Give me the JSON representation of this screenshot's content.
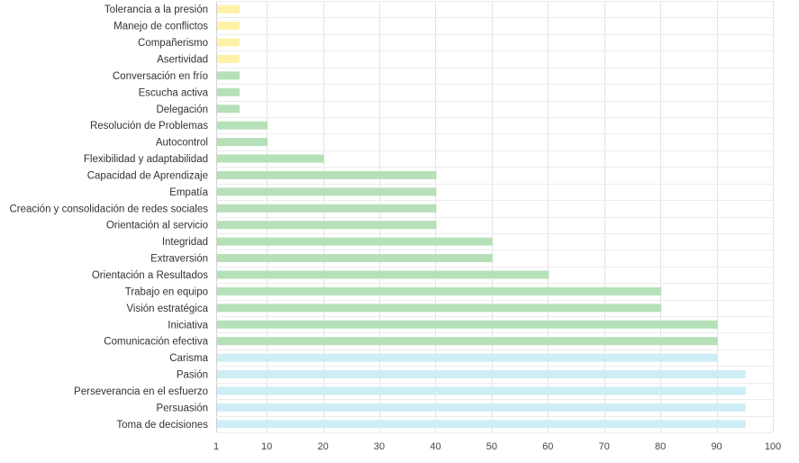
{
  "chart_data": {
    "type": "bar",
    "orientation": "horizontal",
    "categories": [
      "Tolerancia a la presión",
      "Manejo de conflictos",
      "Compañerismo",
      "Asertividad",
      "Conversación en frío",
      "Escucha activa",
      "Delegación",
      "Resolución de Problemas",
      "Autocontrol",
      "Flexibilidad y adaptabilidad",
      "Capacidad de Aprendizaje",
      "Empatía",
      "Creación y consolidación de redes sociales",
      "Orientación al servicio",
      "Integridad",
      "Extraversión",
      "Orientación a Resultados",
      "Trabajo en equipo",
      "Visión estratégica",
      "Iniciativa",
      "Comunicación efectiva",
      "Carisma",
      "Pasión",
      "Perseverancia en el esfuerzo",
      "Persuasión",
      "Toma de decisiones"
    ],
    "values": [
      5,
      5,
      5,
      5,
      5,
      5,
      5,
      10,
      10,
      20,
      40,
      40,
      40,
      40,
      50,
      50,
      60,
      80,
      80,
      90,
      90,
      90,
      95,
      95,
      95,
      95
    ],
    "colors": [
      "#fdf2a8",
      "#fdf2a8",
      "#fdf2a8",
      "#fdf2a8",
      "#b6e0b8",
      "#b6e0b8",
      "#b6e0b8",
      "#b6e0b8",
      "#b6e0b8",
      "#b6e0b8",
      "#b6e0b8",
      "#b6e0b8",
      "#b6e0b8",
      "#b6e0b8",
      "#b6e0b8",
      "#b6e0b8",
      "#b6e0b8",
      "#b6e0b8",
      "#b6e0b8",
      "#b6e0b8",
      "#b6e0b8",
      "#cdeef4",
      "#cdeef4",
      "#cdeef4",
      "#cdeef4",
      "#cdeef4"
    ],
    "xticks": [
      1,
      10,
      20,
      30,
      40,
      50,
      60,
      70,
      80,
      90,
      100
    ],
    "xlim": [
      1,
      100
    ],
    "grid": true,
    "title": "",
    "xlabel": "",
    "ylabel": ""
  }
}
